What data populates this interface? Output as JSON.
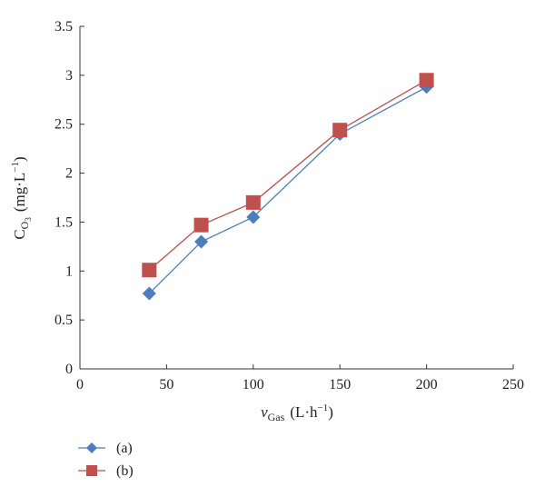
{
  "chart_data": {
    "type": "line",
    "x_axis": {
      "label_symbol": "v",
      "label_subscript": "Gas",
      "label_unit_text": "(L·h",
      "label_unit_sup": "−1",
      "label_unit_close": ")",
      "range": [
        0,
        250
      ],
      "ticks": [
        0,
        50,
        100,
        150,
        200,
        250
      ],
      "tick_labels": [
        "0",
        "50",
        "100",
        "150",
        "200",
        "250"
      ]
    },
    "y_axis": {
      "label_symbol": "C",
      "label_subscript": "O",
      "label_subsubscript": "3",
      "label_unit_text": "(mg·L",
      "label_unit_sup": "−1",
      "label_unit_close": ")",
      "range": [
        0,
        3.5
      ],
      "ticks": [
        0,
        0.5,
        1,
        1.5,
        2,
        2.5,
        3,
        3.5
      ],
      "tick_labels": [
        "0",
        "0.5",
        "1",
        "1.5",
        "2",
        "2.5",
        "3",
        "3.5"
      ]
    },
    "grid": false,
    "legend_position": "bottom-left",
    "series": [
      {
        "name": "(a)",
        "marker": "diamond",
        "color": "#4a7ebf",
        "points": [
          {
            "x": 40,
            "y": 0.77
          },
          {
            "x": 70,
            "y": 1.3
          },
          {
            "x": 100,
            "y": 1.55
          },
          {
            "x": 150,
            "y": 2.4
          },
          {
            "x": 200,
            "y": 2.88
          }
        ]
      },
      {
        "name": "(b)",
        "marker": "square",
        "color": "#c0504d",
        "points": [
          {
            "x": 40,
            "y": 1.01
          },
          {
            "x": 70,
            "y": 1.47
          },
          {
            "x": 100,
            "y": 1.7
          },
          {
            "x": 150,
            "y": 2.44
          },
          {
            "x": 200,
            "y": 2.95
          }
        ]
      }
    ]
  }
}
